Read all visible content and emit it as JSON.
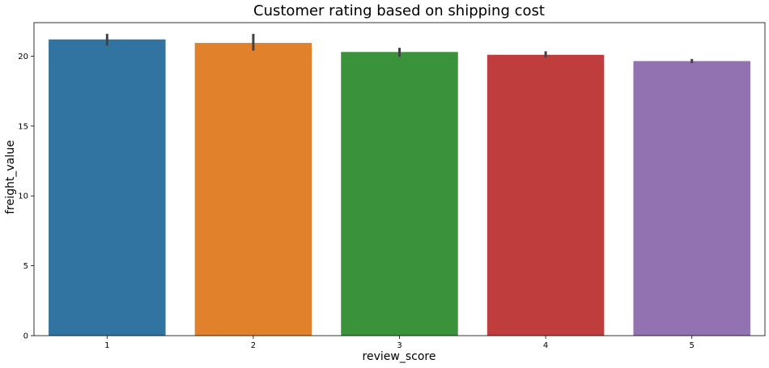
{
  "chart_data": {
    "type": "bar",
    "title": "Customer rating based on shipping cost",
    "xlabel": "review_score",
    "ylabel": "freight_value",
    "categories": [
      "1",
      "2",
      "3",
      "4",
      "5"
    ],
    "values": [
      21.2,
      20.95,
      20.3,
      20.1,
      19.65
    ],
    "error_low": [
      20.75,
      20.4,
      19.95,
      19.9,
      19.5
    ],
    "error_high": [
      21.6,
      21.6,
      20.6,
      20.35,
      19.8
    ],
    "colors": [
      "#3274a1",
      "#e1812c",
      "#3a923a",
      "#c03d3e",
      "#9372b2"
    ],
    "error_color": "#424242",
    "ylim": [
      0,
      22.4
    ],
    "yticks": [
      0,
      5,
      10,
      15,
      20
    ],
    "grid": false
  }
}
